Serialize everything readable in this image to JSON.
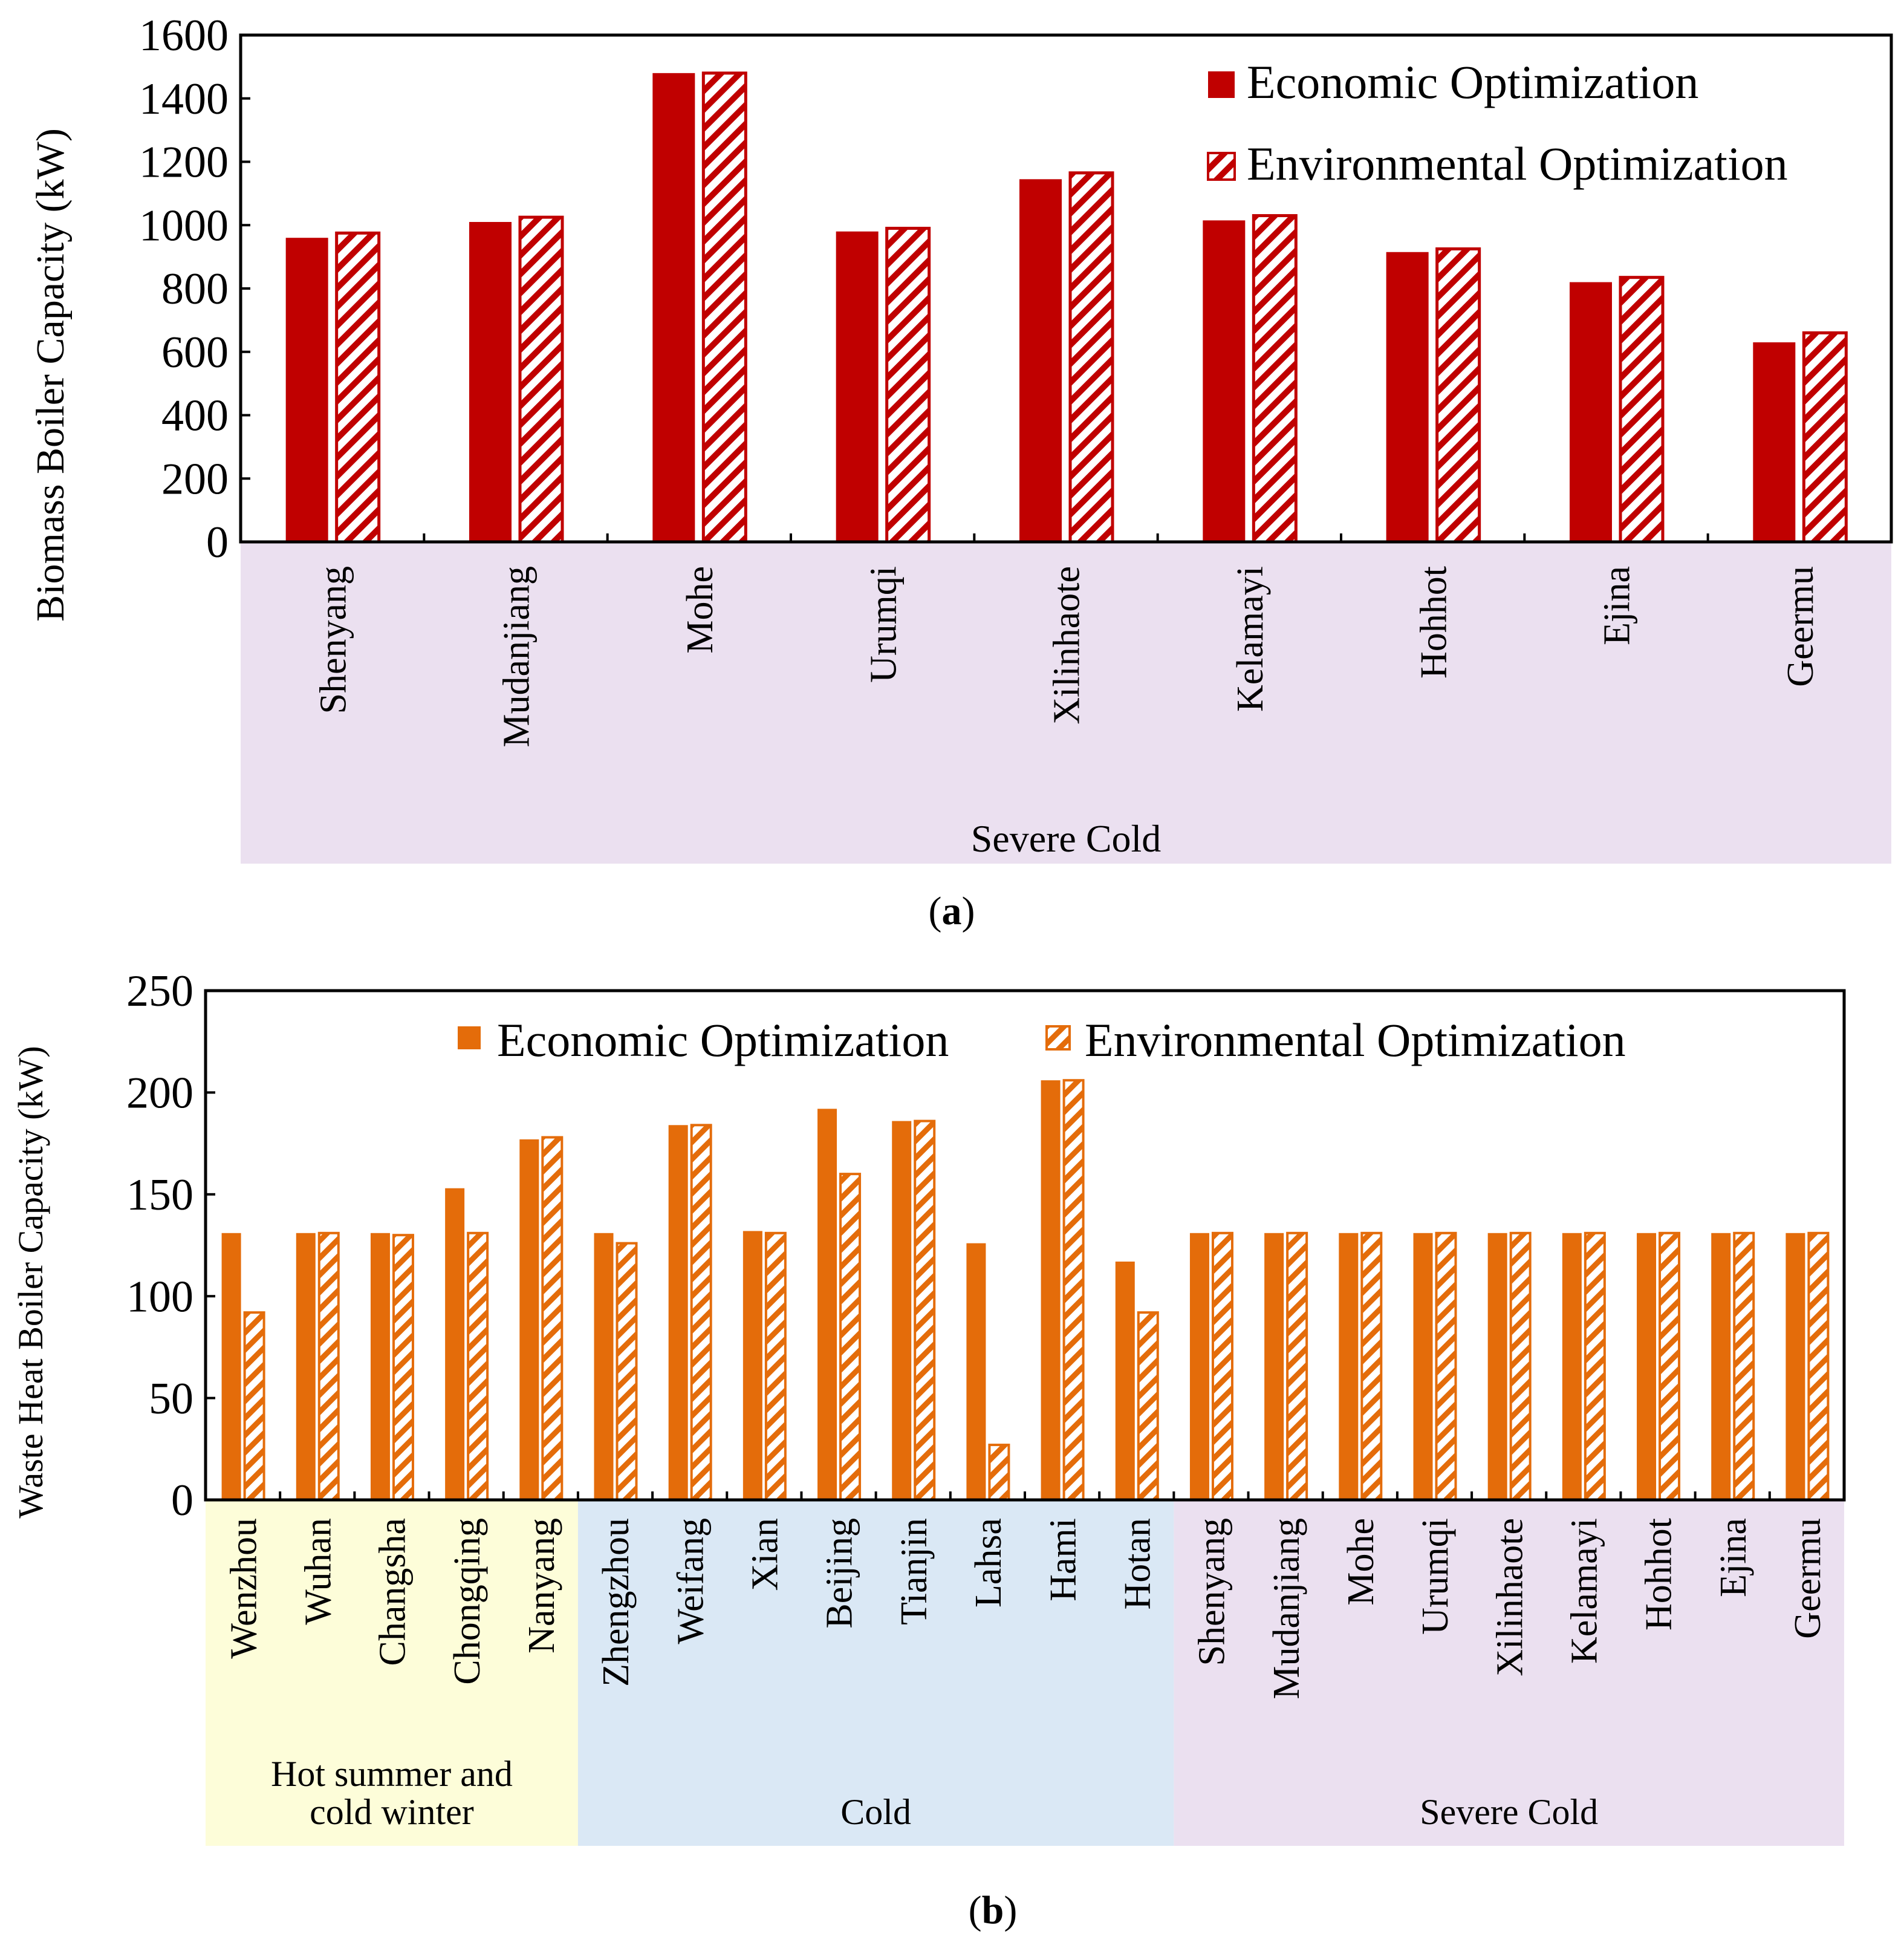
{
  "colors": {
    "chart_a": "#c00000",
    "chart_b": "#e46c0a",
    "band_severe_cold": "#ebe0f0",
    "band_cold": "#dae8f5",
    "band_hot_summer": "#fdfdd9"
  },
  "chart_data": [
    {
      "type": "bar",
      "panel_label": "a",
      "ylabel": "Biomass Boiler Capacity (kW)",
      "ylim": [
        0,
        1600
      ],
      "yticks": [
        0,
        200,
        400,
        600,
        800,
        1000,
        1200,
        1400,
        1600
      ],
      "legend_position": "top-right",
      "categories": [
        "Shenyang",
        "Mudanjiang",
        "Mohe",
        "Urumqi",
        "Xilinhaote",
        "Kelamayi",
        "Hohhot",
        "Ejina",
        "Geermu"
      ],
      "groups": [
        {
          "label": "Severe Cold",
          "start": 0,
          "end": 8
        }
      ],
      "series": [
        {
          "name": "Economic Optimization",
          "pattern": "solid",
          "values": [
            960,
            1010,
            1480,
            980,
            1145,
            1015,
            915,
            820,
            630
          ]
        },
        {
          "name": "Environmental Optimization",
          "pattern": "hatched",
          "values": [
            975,
            1025,
            1480,
            990,
            1165,
            1030,
            925,
            835,
            660
          ]
        }
      ]
    },
    {
      "type": "bar",
      "panel_label": "b",
      "ylabel": "Waste Heat Boiler  Capacity (kW)",
      "ylim": [
        0,
        250
      ],
      "yticks": [
        0,
        50,
        100,
        150,
        200,
        250
      ],
      "legend_position": "top",
      "categories": [
        "Wenzhou",
        "Wuhan",
        "Changsha",
        "Chongqing",
        "Nanyang",
        "Zhengzhou",
        "Weifang",
        "Xian",
        "Beijing",
        "Tianjin",
        "Lahsa",
        "Hami",
        "Hotan",
        "Shenyang",
        "Mudanjiang",
        "Mohe",
        "Urumqi",
        "Xilinhaote",
        "Kelamayi",
        "Hohhot",
        "Ejina",
        "Geermu"
      ],
      "groups": [
        {
          "label_lines": [
            "Hot summer and",
            "cold winter"
          ],
          "start": 0,
          "end": 4
        },
        {
          "label_lines": [
            "Cold"
          ],
          "start": 5,
          "end": 12
        },
        {
          "label_lines": [
            "Severe Cold"
          ],
          "start": 13,
          "end": 21
        }
      ],
      "series": [
        {
          "name": "Economic Optimization",
          "pattern": "solid",
          "values": [
            131,
            131,
            131,
            153,
            177,
            131,
            184,
            132,
            192,
            186,
            126,
            206,
            117,
            131,
            131,
            131,
            131,
            131,
            131,
            131,
            131,
            131
          ]
        },
        {
          "name": "Environmental Optimization",
          "pattern": "hatched",
          "values": [
            92,
            131,
            130,
            131,
            178,
            126,
            184,
            131,
            160,
            186,
            27,
            206,
            92,
            131,
            131,
            131,
            131,
            131,
            131,
            131,
            131,
            131
          ]
        }
      ]
    }
  ]
}
